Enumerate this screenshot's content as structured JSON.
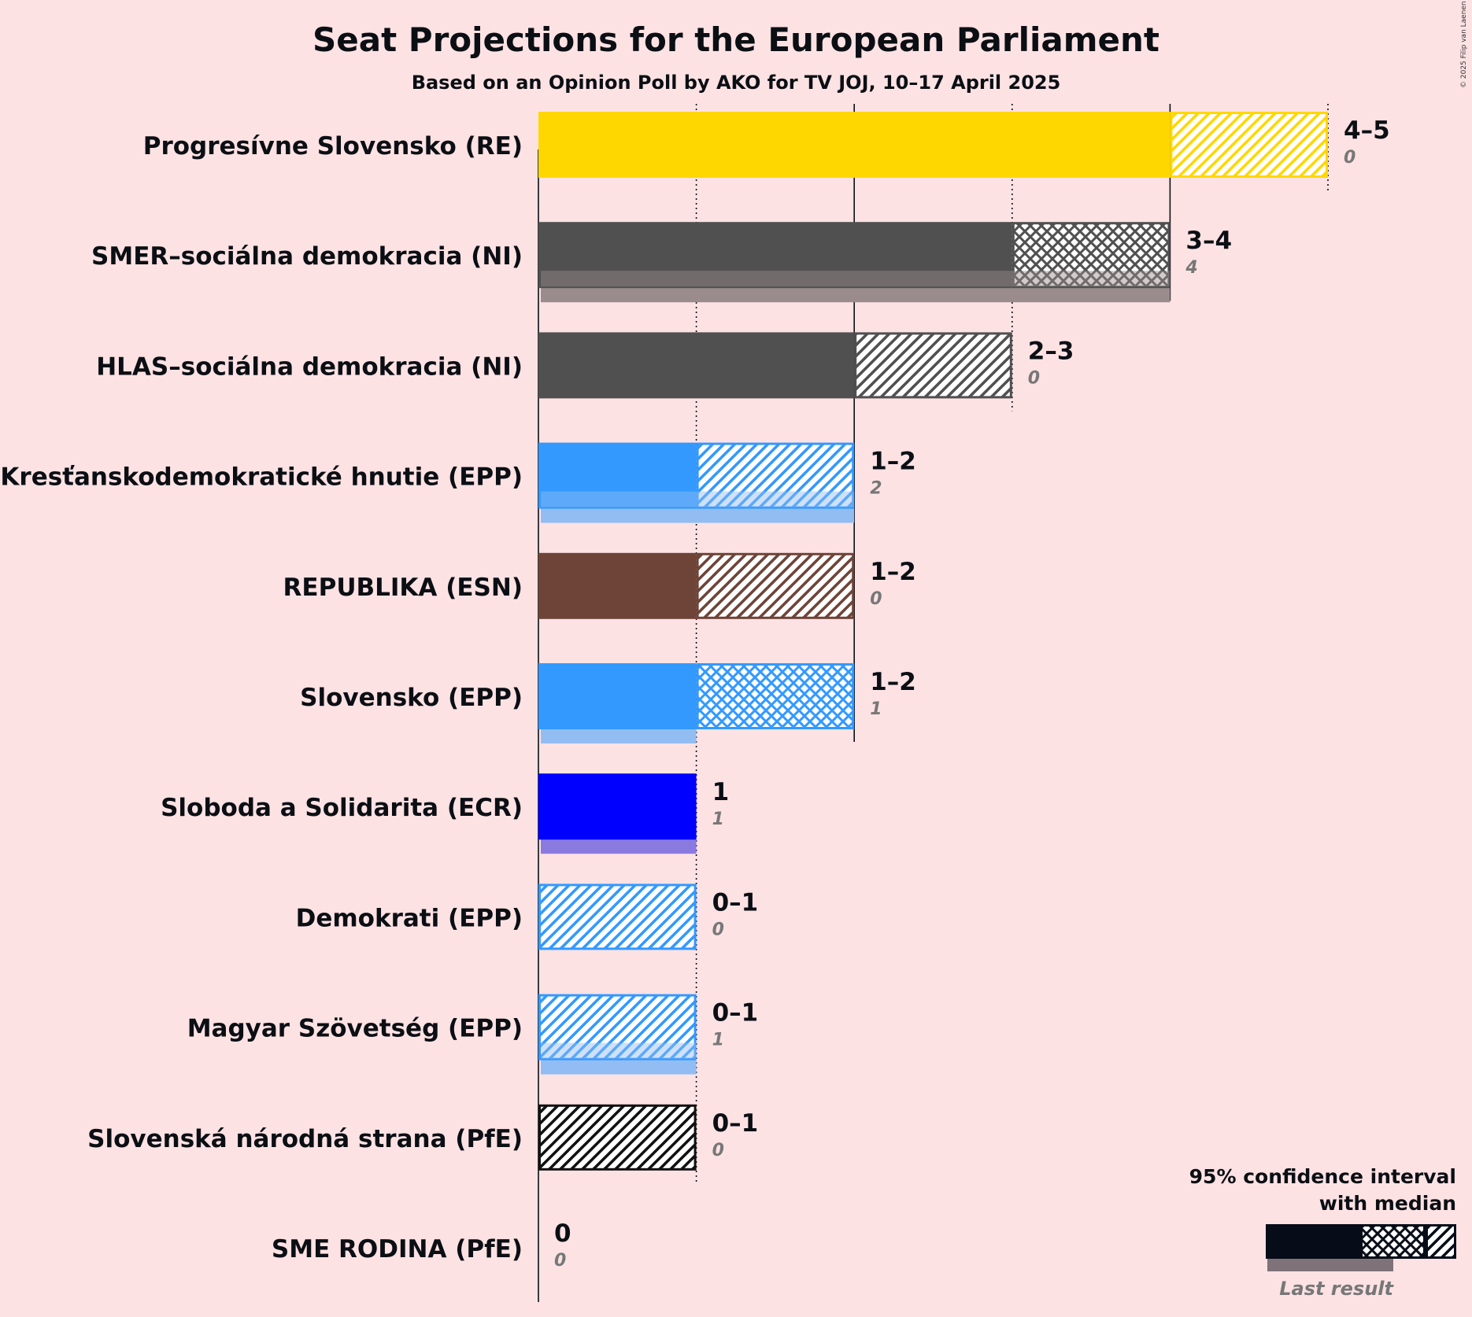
{
  "title": "Seat Projections for the European Parliament",
  "subtitle": "Based on an Opinion Poll by AKO for TV JOJ, 10–17 April 2025",
  "copyright": "© 2025 Filip van Laenen",
  "legend": {
    "line1": "95% confidence interval",
    "line2": "with median",
    "last_result": "Last result"
  },
  "chart_data": {
    "type": "bar",
    "orientation": "horizontal",
    "xlim": [
      0,
      5
    ],
    "title": "Seat Projections for the European Parliament",
    "subtitle": "Based on an Opinion Poll by AKO for TV JOJ, 10–17 April 2025",
    "parties": [
      {
        "name": "Progresívne Slovensko (RE)",
        "low": 4,
        "median": 4,
        "high": 5,
        "range_label": "4–5",
        "last": 0,
        "last_label": "0",
        "color": "#FFD700",
        "last_color": "#FFE97F"
      },
      {
        "name": "SMER–sociálna demokracia (NI)",
        "low": 3,
        "median": 4,
        "high": 4,
        "range_label": "3–4",
        "last": 4,
        "last_label": "4",
        "color": "#505050",
        "last_color": "#9A8C8C"
      },
      {
        "name": "HLAS–sociálna demokracia (NI)",
        "low": 2,
        "median": 2,
        "high": 3,
        "range_label": "2–3",
        "last": 0,
        "last_label": "0",
        "color": "#505050",
        "last_color": "#9A8C8C"
      },
      {
        "name": "Kresťanskodemokratické hnutie (EPP)",
        "low": 1,
        "median": 1,
        "high": 2,
        "range_label": "1–2",
        "last": 2,
        "last_label": "2",
        "color": "#3399FF",
        "last_color": "#92BDF2"
      },
      {
        "name": "REPUBLIKA (ESN)",
        "low": 1,
        "median": 1,
        "high": 2,
        "range_label": "1–2",
        "last": 0,
        "last_label": "0",
        "color": "#6F4438",
        "last_color": "#B09A94"
      },
      {
        "name": "Slovensko (EPP)",
        "low": 1,
        "median": 2,
        "high": 2,
        "range_label": "1–2",
        "last": 1,
        "last_label": "1",
        "color": "#3399FF",
        "last_color": "#92BDF2"
      },
      {
        "name": "Sloboda a Solidarita (ECR)",
        "low": 1,
        "median": 1,
        "high": 1,
        "range_label": "1",
        "last": 1,
        "last_label": "1",
        "color": "#0000FF",
        "last_color": "#8A7AE0"
      },
      {
        "name": "Demokrati (EPP)",
        "low": 0,
        "median": 0,
        "high": 1,
        "range_label": "0–1",
        "last": 0,
        "last_label": "0",
        "color": "#3399FF",
        "last_color": "#92BDF2"
      },
      {
        "name": "Magyar Szövetség (EPP)",
        "low": 0,
        "median": 0,
        "high": 1,
        "range_label": "0–1",
        "last": 1,
        "last_label": "1",
        "color": "#3399FF",
        "last_color": "#92BDF2"
      },
      {
        "name": "Slovenská národná strana (PfE)",
        "low": 0,
        "median": 0,
        "high": 1,
        "range_label": "0–1",
        "last": 0,
        "last_label": "0",
        "color": "#111111",
        "last_color": "#888888"
      },
      {
        "name": "SME RODINA (PfE)",
        "low": 0,
        "median": 0,
        "high": 0,
        "range_label": "0",
        "last": 0,
        "last_label": "0",
        "color": "#444444",
        "last_color": "#999999"
      }
    ]
  }
}
